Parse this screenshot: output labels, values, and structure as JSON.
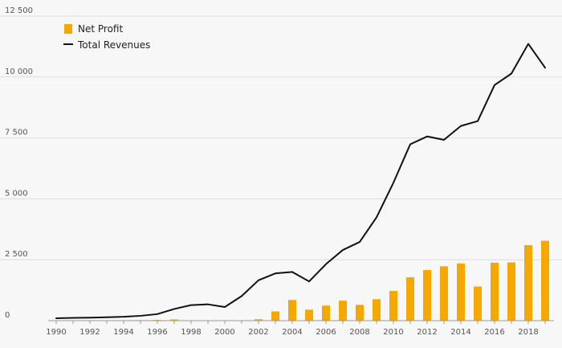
{
  "chart_data": {
    "type": "bar+line",
    "title": "",
    "xlabel": "",
    "ylabel": "",
    "ylim": [
      0,
      12500
    ],
    "yticks": [
      0,
      2500,
      5000,
      7500,
      10000,
      12500
    ],
    "ytick_labels": [
      "0",
      "2 500",
      "5 000",
      "7 500",
      "10 000",
      "12 500"
    ],
    "x": [
      1990,
      1991,
      1992,
      1993,
      1994,
      1995,
      1996,
      1997,
      1998,
      1999,
      2000,
      2001,
      2002,
      2003,
      2004,
      2005,
      2006,
      2007,
      2008,
      2009,
      2010,
      2011,
      2012,
      2013,
      2014,
      2015,
      2016,
      2017,
      2018,
      2019
    ],
    "xtick_labels": [
      "1990",
      "1992",
      "1994",
      "1996",
      "1998",
      "2000",
      "2002",
      "2004",
      "2006",
      "2008",
      "2010",
      "2012",
      "2014",
      "2016",
      "2018"
    ],
    "grid": true,
    "legend_position": "top-left",
    "series": [
      {
        "name": "Net Profit",
        "type": "bar",
        "color": "#f5a800",
        "values": [
          0,
          0,
          0,
          0,
          0,
          20,
          30,
          50,
          0,
          0,
          0,
          0,
          60,
          380,
          850,
          450,
          620,
          820,
          650,
          880,
          1220,
          1780,
          2080,
          2230,
          2350,
          1400,
          2380,
          2390,
          3100,
          3280
        ]
      },
      {
        "name": "Total Revenues",
        "type": "line",
        "color": "#111111",
        "values": [
          100,
          115,
          125,
          140,
          160,
          200,
          270,
          480,
          640,
          670,
          560,
          1010,
          1660,
          1940,
          2000,
          1610,
          2320,
          2900,
          3230,
          4240,
          5660,
          7240,
          7560,
          7420,
          7990,
          8190,
          9670,
          10140,
          11360,
          10380
        ]
      }
    ]
  }
}
